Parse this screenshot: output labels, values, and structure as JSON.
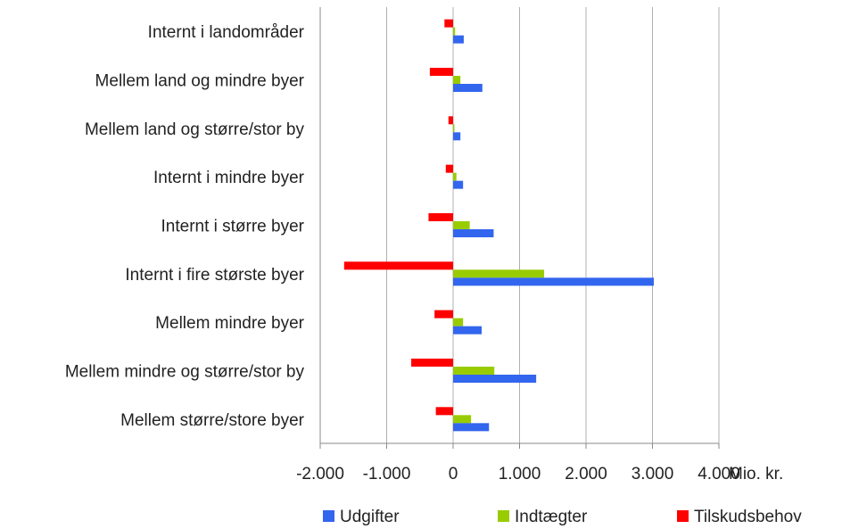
{
  "chart_data": {
    "type": "bar",
    "orientation": "horizontal",
    "categories": [
      "Internt i landområder",
      "Mellem land og mindre byer",
      "Mellem land og større/stor by",
      "Internt i mindre byer",
      "Internt i større byer",
      "Internt i fire største byer",
      "Mellem mindre byer",
      "Mellem mindre og større/stor by",
      "Mellem større/store byer"
    ],
    "series": [
      {
        "name": "Udgifter",
        "color": "#3366ee",
        "values": [
          160,
          440,
          110,
          150,
          610,
          3020,
          430,
          1250,
          540
        ]
      },
      {
        "name": "Indtægter",
        "color": "#99cc00",
        "values": [
          30,
          110,
          20,
          50,
          250,
          1370,
          150,
          620,
          270
        ]
      },
      {
        "name": "Tilskudsbehov",
        "color": "#ff0000",
        "values": [
          -130,
          -350,
          -70,
          -110,
          -370,
          -1640,
          -280,
          -630,
          -260
        ]
      }
    ],
    "xlim": [
      -2000,
      4000
    ],
    "ticks": [
      -2000,
      -1000,
      0,
      1000,
      2000,
      3000,
      4000
    ],
    "tick_labels": [
      "-2.000",
      "-1.000",
      "0",
      "1.000",
      "2.000",
      "3.000",
      "4.000"
    ],
    "unit_label": "Mio. kr.",
    "grid": "vertical",
    "legend": "bottom"
  }
}
